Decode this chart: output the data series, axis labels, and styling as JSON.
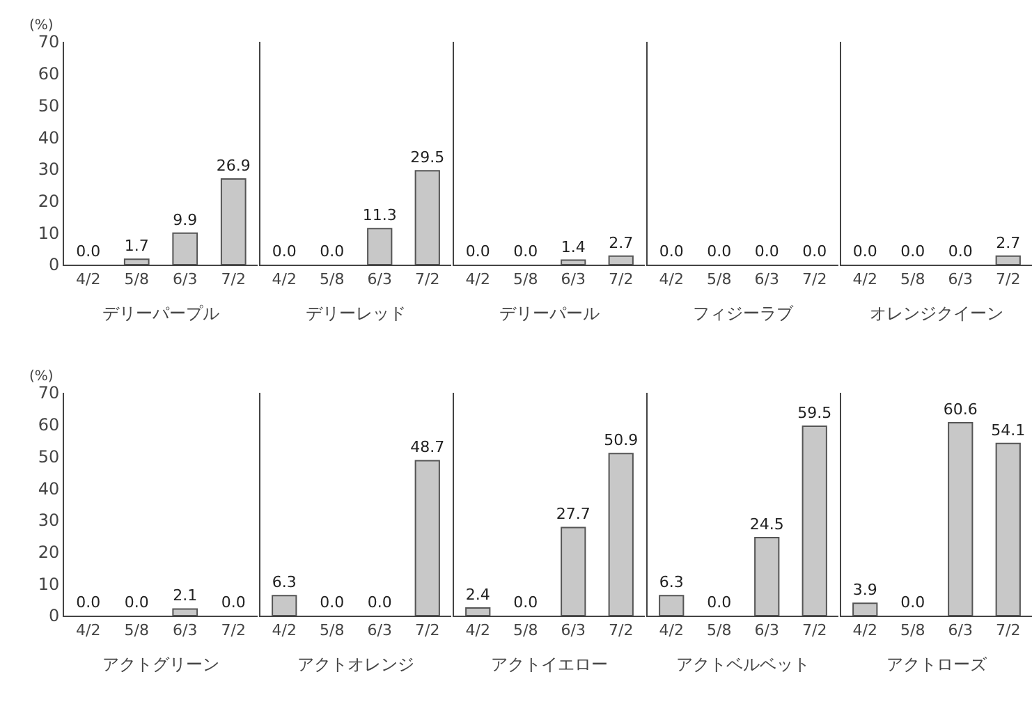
{
  "chart_data": [
    {
      "type": "bar",
      "xlabel": "デリーパープル",
      "ylabel": "(%)",
      "categories": [
        "4/2",
        "5/8",
        "6/3",
        "7/2"
      ],
      "values": [
        0,
        1.7,
        9.9,
        26.9
      ],
      "value_labels": [
        "0.0",
        "1.7",
        "9.9",
        "26.9"
      ],
      "color": "#c8c8c8",
      "ylim": [
        0,
        70
      ],
      "yticks": [
        0,
        10,
        20,
        30,
        40,
        50,
        60,
        70
      ],
      "grid": false
    },
    {
      "type": "bar",
      "xlabel": "デリーレッド",
      "categories": [
        "4/2",
        "5/8",
        "6/3",
        "7/2"
      ],
      "values": [
        0,
        0,
        11.3,
        29.5
      ],
      "value_labels": [
        "0.0",
        "0.0",
        "11.3",
        "29.5"
      ],
      "color": "#c8c8c8",
      "ylim": [
        0,
        70
      ],
      "yticks": [
        0,
        10,
        20,
        30,
        40,
        50,
        60,
        70
      ],
      "grid": false,
      "tick_labels": "x"
    },
    {
      "type": "bar",
      "xlabel": "デリーパール",
      "categories": [
        "4/2",
        "5/8",
        "6/3",
        "7/2"
      ],
      "values": [
        0,
        0,
        1.4,
        2.7
      ],
      "value_labels": [
        "0.0",
        "0.0",
        "1.4",
        "2.7"
      ],
      "color": "#c8c8c8",
      "ylim": [
        0,
        70
      ],
      "yticks": [
        0,
        10,
        20,
        30,
        40,
        50,
        60,
        70
      ],
      "grid": false,
      "tick_labels": "x"
    },
    {
      "type": "bar",
      "xlabel": "フィジーラブ",
      "categories": [
        "4/2",
        "5/8",
        "6/3",
        "7/2"
      ],
      "values": [
        0,
        0,
        0,
        0
      ],
      "value_labels": [
        "0.0",
        "0.0",
        "0.0",
        "0.0"
      ],
      "color": "#c8c8c8",
      "ylim": [
        0,
        70
      ],
      "yticks": [
        0,
        10,
        20,
        30,
        40,
        50,
        60,
        70
      ],
      "grid": false,
      "tick_labels": "x"
    },
    {
      "type": "bar",
      "xlabel": "オレンジクイーン",
      "categories": [
        "4/2",
        "5/8",
        "6/3",
        "7/2"
      ],
      "values": [
        0,
        0,
        0,
        2.7
      ],
      "value_labels": [
        "0.0",
        "0.0",
        "0.0",
        "2.7"
      ],
      "color": "#c8c8c8",
      "ylim": [
        0,
        70
      ],
      "yticks": [
        0,
        10,
        20,
        30,
        40,
        50,
        60,
        70
      ],
      "grid": false,
      "tick_labels": "x"
    },
    {
      "type": "bar",
      "xlabel": "アクトグリーン",
      "ylabel": "(%)",
      "categories": [
        "4/2",
        "5/8",
        "6/3",
        "7/2"
      ],
      "values": [
        0,
        0,
        2.1,
        0
      ],
      "value_labels": [
        "0.0",
        "0.0",
        "2.1",
        "0.0"
      ],
      "color": "#c8c8c8",
      "ylim": [
        0,
        70
      ],
      "yticks": [
        0,
        10,
        20,
        30,
        40,
        50,
        60,
        70
      ],
      "grid": false
    },
    {
      "type": "bar",
      "xlabel": "アクトオレンジ",
      "categories": [
        "4/2",
        "5/8",
        "6/3",
        "7/2"
      ],
      "values": [
        6.3,
        0,
        0,
        48.7
      ],
      "value_labels": [
        "6.3",
        "0.0",
        "0.0",
        "48.7"
      ],
      "color": "#c8c8c8",
      "ylim": [
        0,
        70
      ],
      "yticks": [
        0,
        10,
        20,
        30,
        40,
        50,
        60,
        70
      ],
      "grid": false,
      "tick_labels": "x"
    },
    {
      "type": "bar",
      "xlabel": "アクトイエロー",
      "categories": [
        "4/2",
        "5/8",
        "6/3",
        "7/2"
      ],
      "values": [
        2.4,
        0,
        27.7,
        50.9
      ],
      "value_labels": [
        "2.4",
        "0.0",
        "27.7",
        "50.9"
      ],
      "color": "#c8c8c8",
      "ylim": [
        0,
        70
      ],
      "yticks": [
        0,
        10,
        20,
        30,
        40,
        50,
        60,
        70
      ],
      "grid": false,
      "tick_labels": "x"
    },
    {
      "type": "bar",
      "xlabel": "アクトベルベット",
      "categories": [
        "4/2",
        "5/8",
        "6/3",
        "7/2"
      ],
      "values": [
        6.3,
        0,
        24.5,
        59.5
      ],
      "value_labels": [
        "6.3",
        "0.0",
        "24.5",
        "59.5"
      ],
      "color": "#c8c8c8",
      "ylim": [
        0,
        70
      ],
      "yticks": [
        0,
        10,
        20,
        30,
        40,
        50,
        60,
        70
      ],
      "grid": false,
      "tick_labels": "x"
    },
    {
      "type": "bar",
      "xlabel": "アクトローズ",
      "categories": [
        "4/2",
        "5/8",
        "6/3",
        "7/2"
      ],
      "values": [
        3.9,
        0,
        60.6,
        54.1
      ],
      "value_labels": [
        "3.9",
        "0.0",
        "60.6",
        "54.1"
      ],
      "color": "#c8c8c8",
      "ylim": [
        0,
        70
      ],
      "yticks": [
        0,
        10,
        20,
        30,
        40,
        50,
        60,
        70
      ],
      "grid": false,
      "tick_labels": "x"
    }
  ]
}
